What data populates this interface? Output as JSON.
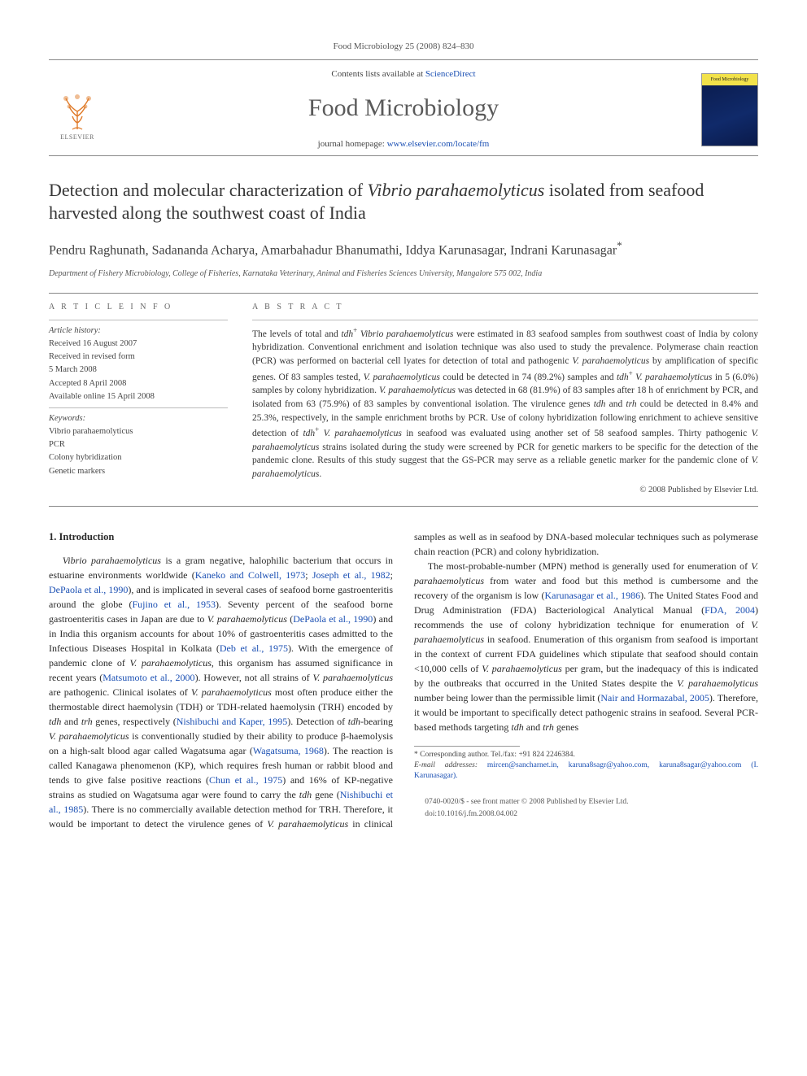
{
  "running_head": "Food Microbiology 25 (2008) 824–830",
  "masthead": {
    "contents_prefix": "Contents lists available at ",
    "contents_link": "ScienceDirect",
    "journal": "Food Microbiology",
    "homepage_prefix": "journal homepage: ",
    "homepage_link": "www.elsevier.com/locate/fm",
    "publisher_name": "ELSEVIER",
    "cover_label": "Food Microbiology"
  },
  "title_part1": "Detection and molecular characterization of ",
  "title_italic": "Vibrio parahaemolyticus",
  "title_part2": " isolated from seafood harvested along the southwest coast of India",
  "authors": "Pendru Raghunath, Sadananda Acharya, Amarbahadur Bhanumathi, Iddya Karunasagar, Indrani Karunasagar",
  "corr_mark": "*",
  "affiliation": "Department of Fishery Microbiology, College of Fisheries, Karnataka Veterinary, Animal and Fisheries Sciences University, Mangalore 575 002, India",
  "article_info": {
    "heading": "A R T I C L E   I N F O",
    "history_label": "Article history:",
    "received": "Received 16 August 2007",
    "revised_l1": "Received in revised form",
    "revised_l2": "5 March 2008",
    "accepted": "Accepted 8 April 2008",
    "online": "Available online 15 April 2008",
    "keywords_label": "Keywords:",
    "kw1": "Vibrio parahaemolyticus",
    "kw2": "PCR",
    "kw3": "Colony hybridization",
    "kw4": "Genetic markers"
  },
  "abstract": {
    "heading": "A B S T R A C T",
    "text_parts": [
      {
        "t": "The levels of total and "
      },
      {
        "t": "tdh",
        "i": true
      },
      {
        "t": "+",
        "sup": true
      },
      {
        "t": " "
      },
      {
        "t": "Vibrio parahaemolyticus",
        "i": true
      },
      {
        "t": " were estimated in 83 seafood samples from southwest coast of India by colony hybridization. Conventional enrichment and isolation technique was also used to study the prevalence. Polymerase chain reaction (PCR) was performed on bacterial cell lyates for detection of total and pathogenic "
      },
      {
        "t": "V. parahaemolyticus",
        "i": true
      },
      {
        "t": " by amplification of specific genes. Of 83 samples tested, "
      },
      {
        "t": "V. parahaemolyticus",
        "i": true
      },
      {
        "t": " could be detected in 74 (89.2%) samples and "
      },
      {
        "t": "tdh",
        "i": true
      },
      {
        "t": "+",
        "sup": true
      },
      {
        "t": " "
      },
      {
        "t": "V. parahaemolyticus",
        "i": true
      },
      {
        "t": " in 5 (6.0%) samples by colony hybridization. "
      },
      {
        "t": "V. parahaemolyticus",
        "i": true
      },
      {
        "t": " was detected in 68 (81.9%) of 83 samples after 18 h of enrichment by PCR, and isolated from 63 (75.9%) of 83 samples by conventional isolation. The virulence genes "
      },
      {
        "t": "tdh",
        "i": true
      },
      {
        "t": " and "
      },
      {
        "t": "trh",
        "i": true
      },
      {
        "t": " could be detected in 8.4% and 25.3%, respectively, in the sample enrichment broths by PCR. Use of colony hybridization following enrichment to achieve sensitive detection of "
      },
      {
        "t": "tdh",
        "i": true
      },
      {
        "t": "+",
        "sup": true
      },
      {
        "t": " "
      },
      {
        "t": "V. parahaemolyticus",
        "i": true
      },
      {
        "t": " in seafood was evaluated using another set of 58 seafood samples. Thirty pathogenic "
      },
      {
        "t": "V. parahaemolyticus",
        "i": true
      },
      {
        "t": " strains isolated during the study were screened by PCR for genetic markers to be specific for the detection of the pandemic clone. Results of this study suggest that the GS-PCR may serve as a reliable genetic marker for the pandemic clone of "
      },
      {
        "t": "V. parahaemolyticus",
        "i": true
      },
      {
        "t": "."
      }
    ],
    "copyright": "© 2008 Published by Elsevier Ltd."
  },
  "section1_heading": "1.  Introduction",
  "intro_p1_parts": [
    {
      "t": "Vibrio parahaemolyticus",
      "i": true
    },
    {
      "t": " is a gram negative, halophilic bacterium that occurs in estuarine environments worldwide ("
    },
    {
      "t": "Kaneko and Colwell, 1973",
      "a": true
    },
    {
      "t": "; "
    },
    {
      "t": "Joseph et al., 1982",
      "a": true
    },
    {
      "t": "; "
    },
    {
      "t": "DePaola et al., 1990",
      "a": true
    },
    {
      "t": "), and is implicated in several cases of seafood borne gastroenteritis around the globe ("
    },
    {
      "t": "Fujino et al., 1953",
      "a": true
    },
    {
      "t": "). Seventy percent of the seafood borne gastroenteritis cases in Japan are due to "
    },
    {
      "t": "V. parahaemolyticus",
      "i": true
    },
    {
      "t": " ("
    },
    {
      "t": "DePaola et al., 1990",
      "a": true
    },
    {
      "t": ") and in India this organism accounts for about 10% of gastroenteritis cases admitted to the Infectious Diseases Hospital in Kolkata ("
    },
    {
      "t": "Deb et al., 1975",
      "a": true
    },
    {
      "t": "). With the emergence of pandemic clone of "
    },
    {
      "t": "V. parahaemolyticus",
      "i": true
    },
    {
      "t": ", this organism has assumed significance in recent years ("
    },
    {
      "t": "Matsumoto et al., 2000",
      "a": true
    },
    {
      "t": "). However, not all strains of "
    },
    {
      "t": "V. parahaemolyticus",
      "i": true
    },
    {
      "t": " are pathogenic. Clinical isolates of "
    },
    {
      "t": "V. parahaemolyticus",
      "i": true
    },
    {
      "t": " most often produce either the thermostable direct haemolysin (TDH) or TDH-related haemolysin (TRH) encoded by "
    },
    {
      "t": "tdh",
      "i": true
    },
    {
      "t": " and "
    },
    {
      "t": "trh",
      "i": true
    },
    {
      "t": " genes, respectively ("
    },
    {
      "t": "Nishibuchi and Kaper, 1995",
      "a": true
    },
    {
      "t": "). Detection of "
    },
    {
      "t": "tdh",
      "i": true
    },
    {
      "t": "-bearing "
    },
    {
      "t": "V. parahaemolyticus",
      "i": true
    },
    {
      "t": " is conventionally studied by their ability to produce "
    },
    {
      "t": "β",
      "g": true
    },
    {
      "t": "-haemolysis on a high-salt blood agar called Wagatsuma agar ("
    },
    {
      "t": "Wagatsuma, 1968",
      "a": true
    },
    {
      "t": "). The reaction is called Kanagawa phenomenon (KP), which requires fresh human or rabbit blood and tends to give false positive reactions ("
    },
    {
      "t": "Chun et al., 1975",
      "a": true
    },
    {
      "t": ") and 16% of KP-negative strains as studied on Wagatsuma agar were found to carry the "
    },
    {
      "t": "tdh",
      "i": true
    },
    {
      "t": " gene ("
    },
    {
      "t": "Nishibuchi et al., 1985",
      "a": true
    },
    {
      "t": "). There is no commercially available detection method for TRH. Therefore, it would be important to detect the virulence genes of "
    },
    {
      "t": "V. parahaemolyticus",
      "i": true
    },
    {
      "t": " in clinical samples as well as in seafood by DNA-based molecular techniques such as polymerase chain reaction (PCR) and colony hybridization."
    }
  ],
  "intro_p2_parts": [
    {
      "t": "The most-probable-number (MPN) method is generally used for enumeration of "
    },
    {
      "t": "V. parahaemolyticus",
      "i": true
    },
    {
      "t": " from water and food but this method is cumbersome and the recovery of the organism is low ("
    },
    {
      "t": "Karunasagar et al., 1986",
      "a": true
    },
    {
      "t": "). The United States Food and Drug Administration (FDA) Bacteriological Analytical Manual ("
    },
    {
      "t": "FDA, 2004",
      "a": true
    },
    {
      "t": ") recommends the use of colony hybridization technique for enumeration of "
    },
    {
      "t": "V. parahaemolyticus",
      "i": true
    },
    {
      "t": " in seafood. Enumeration of this organism from seafood is important in the context of current FDA guidelines which stipulate that seafood should contain <10,000 cells of "
    },
    {
      "t": "V. parahaemolyticus",
      "i": true
    },
    {
      "t": " per gram, but the inadequacy of this is indicated by the outbreaks that occurred in the United States despite the "
    },
    {
      "t": "V. parahaemolyticus",
      "i": true
    },
    {
      "t": " number being lower than the permissible limit ("
    },
    {
      "t": "Nair and Hormazabal, 2005",
      "a": true
    },
    {
      "t": "). Therefore, it would be important to specifically detect pathogenic strains in seafood. Several PCR-based methods targeting "
    },
    {
      "t": "tdh",
      "i": true
    },
    {
      "t": " and "
    },
    {
      "t": "trh",
      "i": true
    },
    {
      "t": " genes"
    }
  ],
  "footnotes": {
    "corr_line": "* Corresponding author. Tel./fax: +91 824 2246384.",
    "email_label": "E-mail addresses:",
    "emails": " mircen@sancharnet.in, karuna8sagr@yahoo.com, karuna8sagar@yahoo.com (I. Karunasagar).",
    "front_matter": "0740-0020/$ - see front matter © 2008 Published by Elsevier Ltd.",
    "doi": "doi:10.1016/j.fm.2008.04.002"
  },
  "colors": {
    "link": "#1a4fb3",
    "text": "#2a2a2a",
    "muted": "#555555",
    "rule": "#888888"
  }
}
